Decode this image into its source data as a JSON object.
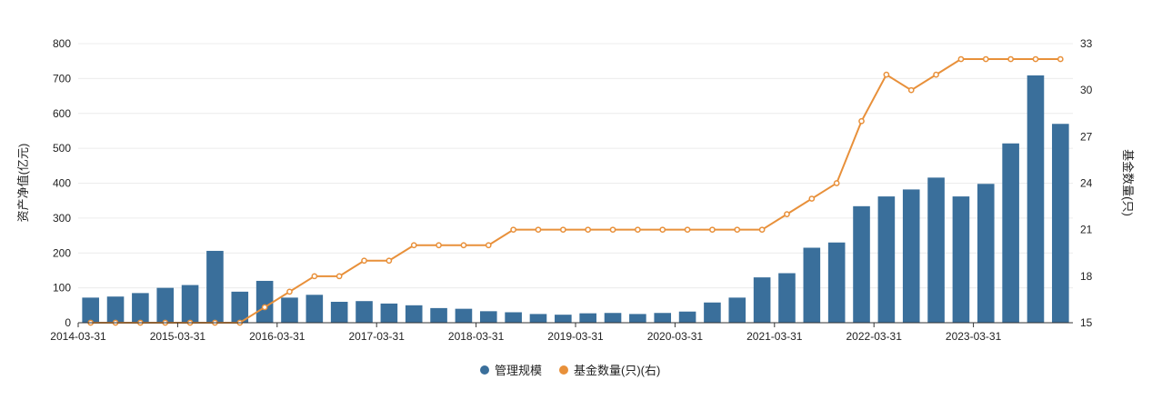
{
  "chart_data": {
    "type": "bar+line",
    "categories": [
      "2014-03-31",
      "2014-06-30",
      "2014-09-30",
      "2014-12-31",
      "2015-03-31",
      "2015-06-30",
      "2015-09-30",
      "2015-12-31",
      "2016-03-31",
      "2016-06-30",
      "2016-09-30",
      "2016-12-31",
      "2017-03-31",
      "2017-06-30",
      "2017-09-30",
      "2017-12-31",
      "2018-03-31",
      "2018-06-30",
      "2018-09-30",
      "2018-12-31",
      "2019-03-31",
      "2019-06-30",
      "2019-09-30",
      "2019-12-31",
      "2020-03-31",
      "2020-06-30",
      "2020-09-30",
      "2020-12-31",
      "2021-03-31",
      "2021-06-30",
      "2021-09-30",
      "2021-12-31",
      "2022-03-31",
      "2022-06-30",
      "2022-09-30",
      "2022-12-31",
      "2023-03-31",
      "2023-06-30",
      "2023-09-30",
      "2023-12-31"
    ],
    "x_tick_labels": [
      "2014-03-31",
      "2015-03-31",
      "2016-03-31",
      "2017-03-31",
      "2018-03-31",
      "2019-03-31",
      "2020-03-31",
      "2021-03-31",
      "2022-03-31",
      "2023-03-31"
    ],
    "series": [
      {
        "name": "管理规模",
        "kind": "bar",
        "axis": "left",
        "color": "#3a6f9b",
        "values": [
          72,
          75,
          85,
          100,
          108,
          206,
          89,
          120,
          72,
          80,
          60,
          62,
          55,
          50,
          42,
          40,
          33,
          30,
          25,
          23,
          27,
          28,
          25,
          28,
          32,
          58,
          72,
          130,
          142,
          215,
          230,
          334,
          362,
          382,
          416,
          362,
          398,
          514,
          709,
          570
        ]
      },
      {
        "name": "基金数量(只)(右)",
        "kind": "line",
        "axis": "right",
        "color": "#e8903a",
        "values": [
          15,
          15,
          15,
          15,
          15,
          15,
          15,
          16,
          17,
          18,
          18,
          19,
          19,
          20,
          20,
          20,
          20,
          21,
          21,
          21,
          21,
          21,
          21,
          21,
          21,
          21,
          21,
          21,
          22,
          23,
          24,
          28,
          31,
          30,
          31,
          32,
          32,
          32,
          32,
          32
        ]
      }
    ],
    "y_left": {
      "label": "资产净值(亿元)",
      "min": 0,
      "max": 800,
      "ticks": [
        0,
        100,
        200,
        300,
        400,
        500,
        600,
        700,
        800
      ]
    },
    "y_right": {
      "label": "基金数量(只)",
      "min": 15,
      "max": 33,
      "ticks": [
        15,
        18,
        21,
        24,
        27,
        30,
        33
      ]
    },
    "grid": true,
    "legend_position": "bottom-center"
  }
}
